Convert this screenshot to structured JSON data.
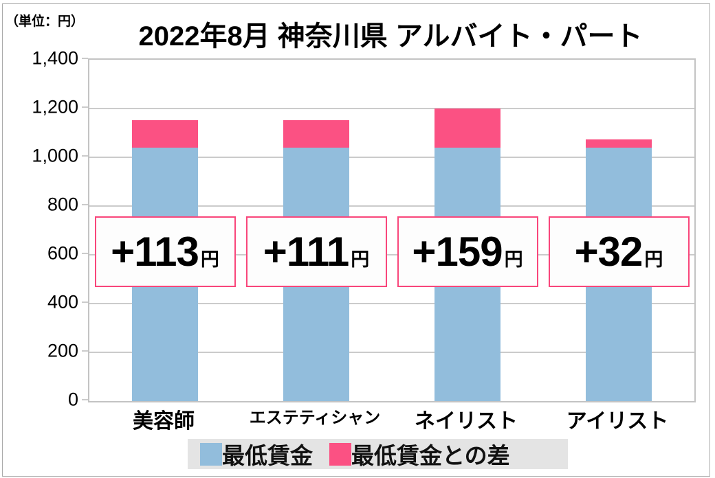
{
  "unit_label": "（単位：円）",
  "title": "2022年8月 神奈川県 アルバイト・パート",
  "chart_data": {
    "type": "bar",
    "stacked": true,
    "categories": [
      "美容師",
      "エステティシャン",
      "ネイリスト",
      "アイリスト"
    ],
    "series": [
      {
        "name": "最低賃金",
        "color": "#92bddc",
        "values": [
          1040,
          1040,
          1040,
          1040
        ]
      },
      {
        "name": "最低賃金との差",
        "color": "#fb5183",
        "values": [
          113,
          111,
          159,
          32
        ]
      }
    ],
    "totals": [
      1153,
      1151,
      1199,
      1072
    ],
    "annotations": [
      {
        "value": "+113",
        "suffix": "円"
      },
      {
        "value": "+111",
        "suffix": "円"
      },
      {
        "value": "+159",
        "suffix": "円"
      },
      {
        "value": "+32",
        "suffix": "円"
      }
    ],
    "title": "2022年8月 神奈川県 アルバイト・パート",
    "xlabel": "",
    "ylabel": "（単位：円）",
    "ylim": [
      0,
      1400
    ],
    "ytick_interval": 200,
    "ytick_labels": [
      "1,400",
      "1,200",
      "1,000",
      "800",
      "600",
      "400",
      "200",
      "0"
    ],
    "grid": true,
    "legend_position": "bottom"
  },
  "legend": {
    "items": [
      {
        "label": "最低賃金",
        "color": "#92bddc"
      },
      {
        "label": "最低賃金との差",
        "color": "#fb5183"
      }
    ],
    "background": "#e4e4e4"
  },
  "colors": {
    "min_wage_bar": "#92bddc",
    "diff_bar": "#fb5183",
    "gridline": "#cbcbcb",
    "plot_border": "#c3c3c3",
    "annotation_border": "#f9467b",
    "annotation_background": "#fdfdfd",
    "legend_background": "#e4e4e4",
    "outer_frame": "#a9a9a9",
    "text": "#000000"
  }
}
